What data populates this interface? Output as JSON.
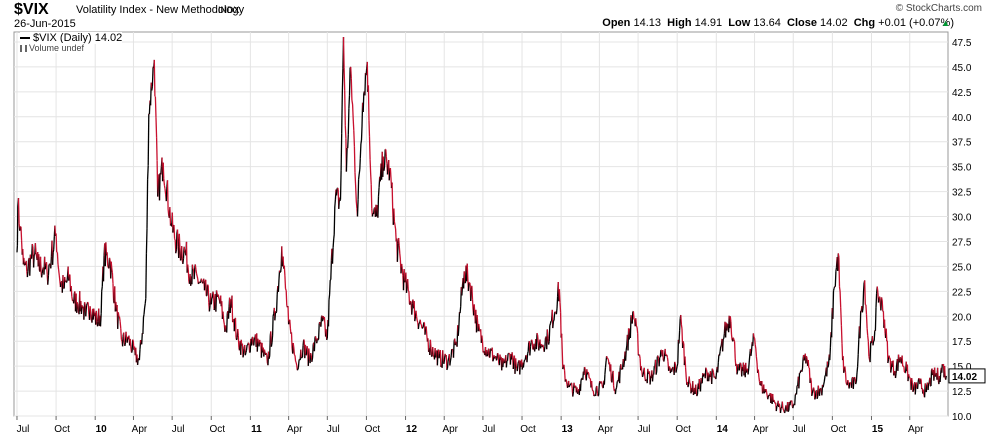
{
  "header": {
    "ticker": "$VIX",
    "name": "Volatility Index - New Methodology",
    "exchange": "INDX",
    "date": "26-Jun-2015",
    "brand": "© StockCharts.com",
    "open_label": "Open",
    "open": "14.13",
    "high_label": "High",
    "high": "14.91",
    "low_label": "Low",
    "low": "13.64",
    "close_label": "Close",
    "close": "14.02",
    "chg_label": "Chg",
    "chg": "+0.01 (+0.07%)"
  },
  "legend": {
    "series_label": "$VIX (Daily) 14.02",
    "volume_label": "Volume undef"
  },
  "colors": {
    "up": "#000000",
    "down": "#c8102e",
    "grid": "#e4e4e4",
    "last_box": "#ffffff"
  },
  "chart_data": {
    "type": "line",
    "title": "$VIX (Daily) 14.02",
    "series": [
      {
        "name": "$VIX (Daily)",
        "x": [
          "2009-07-01",
          "2009-07-03",
          "2009-07-09",
          "2009-07-16",
          "2009-07-24",
          "2009-08-03",
          "2009-08-12",
          "2009-08-20",
          "2009-09-01",
          "2009-09-10",
          "2009-09-20",
          "2009-10-01",
          "2009-10-10",
          "2009-10-20",
          "2009-11-01",
          "2009-11-10",
          "2009-11-20",
          "2009-12-01",
          "2009-12-10",
          "2009-12-20",
          "2010-01-05",
          "2010-01-15",
          "2010-01-22",
          "2010-02-05",
          "2010-02-20",
          "2010-03-05",
          "2010-03-20",
          "2010-04-05",
          "2010-04-15",
          "2010-04-30",
          "2010-05-07",
          "2010-05-20",
          "2010-05-28",
          "2010-06-10",
          "2010-06-30",
          "2010-07-15",
          "2010-08-01",
          "2010-08-15",
          "2010-08-30",
          "2010-09-15",
          "2010-10-01",
          "2010-10-20",
          "2010-11-05",
          "2010-11-16",
          "2010-12-01",
          "2010-12-20",
          "2011-01-05",
          "2011-01-20",
          "2011-02-10",
          "2011-03-01",
          "2011-03-16",
          "2011-04-01",
          "2011-04-20",
          "2011-05-05",
          "2011-05-20",
          "2011-06-05",
          "2011-06-20",
          "2011-07-01",
          "2011-07-20",
          "2011-08-01",
          "2011-08-08",
          "2011-08-15",
          "2011-08-25",
          "2011-09-10",
          "2011-09-22",
          "2011-10-03",
          "2011-10-15",
          "2011-10-25",
          "2011-11-10",
          "2011-11-25",
          "2011-12-10",
          "2011-12-30",
          "2012-01-20",
          "2012-02-10",
          "2012-03-01",
          "2012-03-20",
          "2012-04-10",
          "2012-04-30",
          "2012-05-18",
          "2012-06-01",
          "2012-06-20",
          "2012-07-10",
          "2012-07-30",
          "2012-08-17",
          "2012-09-05",
          "2012-09-20",
          "2012-10-10",
          "2012-10-25",
          "2012-11-15",
          "2012-12-01",
          "2012-12-28",
          "2013-01-05",
          "2013-01-20",
          "2013-02-10",
          "2013-02-25",
          "2013-03-15",
          "2013-04-10",
          "2013-04-18",
          "2013-05-10",
          "2013-06-03",
          "2013-06-20",
          "2013-07-10",
          "2013-08-01",
          "2013-08-28",
          "2013-09-15",
          "2013-10-01",
          "2013-10-08",
          "2013-10-25",
          "2013-11-15",
          "2013-12-10",
          "2013-12-31",
          "2014-01-20",
          "2014-02-03",
          "2014-02-20",
          "2014-03-14",
          "2014-04-01",
          "2014-04-14",
          "2014-05-05",
          "2014-05-25",
          "2014-06-15",
          "2014-07-03",
          "2014-07-20",
          "2014-08-01",
          "2014-08-15",
          "2014-09-05",
          "2014-09-25",
          "2014-10-05",
          "2014-10-15",
          "2014-10-25",
          "2014-11-05",
          "2014-11-25",
          "2014-12-08",
          "2014-12-16",
          "2014-12-26",
          "2015-01-06",
          "2015-01-16",
          "2015-01-29",
          "2015-02-10",
          "2015-02-25",
          "2015-03-10",
          "2015-03-25",
          "2015-04-10",
          "2015-04-25",
          "2015-05-10",
          "2015-05-25",
          "2015-06-10",
          "2015-06-18",
          "2015-06-26"
        ],
        "values": [
          26.4,
          31.0,
          29.0,
          25.2,
          24.5,
          25.8,
          26.2,
          25.0,
          24.9,
          24.2,
          26.0,
          28.3,
          23.5,
          22.8,
          24.0,
          21.6,
          21.4,
          21.1,
          20.0,
          21.0,
          19.5,
          20.3,
          26.1,
          25.6,
          20.5,
          17.5,
          17.7,
          16.1,
          15.6,
          21.8,
          40.3,
          45.7,
          32.0,
          35.4,
          29.0,
          27.0,
          26.4,
          24.0,
          23.8,
          22.6,
          21.2,
          21.7,
          18.6,
          21.7,
          17.9,
          16.1,
          17.8,
          17.3,
          15.3,
          20.5,
          27.0,
          19.2,
          15.1,
          17.1,
          15.7,
          17.5,
          19.5,
          17.8,
          31.7,
          31.7,
          48.0,
          34.5,
          45.0,
          30.0,
          41.4,
          45.5,
          30.0,
          30.0,
          36.0,
          34.5,
          27.5,
          23.4,
          20.8,
          18.8,
          16.8,
          15.8,
          15.5,
          17.1,
          24.5,
          23.2,
          18.5,
          16.6,
          15.9,
          14.9,
          16.2,
          14.5,
          16.1,
          17.5,
          17.2,
          17.8,
          22.7,
          14.7,
          12.9,
          12.4,
          14.9,
          12.7,
          12.8,
          16.0,
          12.7,
          16.6,
          20.5,
          14.4,
          13.8,
          16.6,
          14.3,
          15.0,
          19.8,
          13.4,
          12.4,
          14.4,
          13.7,
          18.3,
          20.0,
          14.5,
          14.5,
          17.8,
          13.1,
          12.1,
          11.0,
          10.7,
          11.2,
          14.6,
          16.0,
          12.3,
          12.6,
          15.6,
          22.8,
          26.3,
          15.6,
          13.1,
          13.2,
          20.5,
          23.6,
          16.0,
          17.5,
          22.4,
          20.5,
          15.7,
          14.5,
          15.9,
          14.5,
          12.6,
          13.2,
          12.4,
          14.1,
          14.0,
          15.0,
          14.02
        ]
      }
    ],
    "last_value": "14.02",
    "y_ticks": [
      "10.0",
      "12.5",
      "15.0",
      "17.5",
      "20.0",
      "22.5",
      "25.0",
      "27.5",
      "30.0",
      "32.5",
      "35.0",
      "37.5",
      "40.0",
      "42.5",
      "45.0",
      "47.5"
    ],
    "ylim": [
      10.0,
      48.5
    ],
    "x_ticks": [
      {
        "label": "Jul",
        "date": "2009-07-01",
        "bold": false
      },
      {
        "label": "Oct",
        "date": "2009-10-01",
        "bold": false
      },
      {
        "label": "10",
        "date": "2010-01-01",
        "bold": true
      },
      {
        "label": "Apr",
        "date": "2010-04-01",
        "bold": false
      },
      {
        "label": "Jul",
        "date": "2010-07-01",
        "bold": false
      },
      {
        "label": "Oct",
        "date": "2010-10-01",
        "bold": false
      },
      {
        "label": "11",
        "date": "2011-01-01",
        "bold": true
      },
      {
        "label": "Apr",
        "date": "2011-04-01",
        "bold": false
      },
      {
        "label": "Jul",
        "date": "2011-07-01",
        "bold": false
      },
      {
        "label": "Oct",
        "date": "2011-10-01",
        "bold": false
      },
      {
        "label": "12",
        "date": "2012-01-01",
        "bold": true
      },
      {
        "label": "Apr",
        "date": "2012-04-01",
        "bold": false
      },
      {
        "label": "Jul",
        "date": "2012-07-01",
        "bold": false
      },
      {
        "label": "Oct",
        "date": "2012-10-01",
        "bold": false
      },
      {
        "label": "13",
        "date": "2013-01-01",
        "bold": true
      },
      {
        "label": "Apr",
        "date": "2013-04-01",
        "bold": false
      },
      {
        "label": "Jul",
        "date": "2013-07-01",
        "bold": false
      },
      {
        "label": "Oct",
        "date": "2013-10-01",
        "bold": false
      },
      {
        "label": "14",
        "date": "2014-01-01",
        "bold": true
      },
      {
        "label": "Apr",
        "date": "2014-04-01",
        "bold": false
      },
      {
        "label": "Jul",
        "date": "2014-07-01",
        "bold": false
      },
      {
        "label": "Oct",
        "date": "2014-10-01",
        "bold": false
      },
      {
        "label": "15",
        "date": "2015-01-01",
        "bold": true
      },
      {
        "label": "Apr",
        "date": "2015-04-01",
        "bold": false
      }
    ],
    "grid": true,
    "legend_position": "top-left"
  }
}
